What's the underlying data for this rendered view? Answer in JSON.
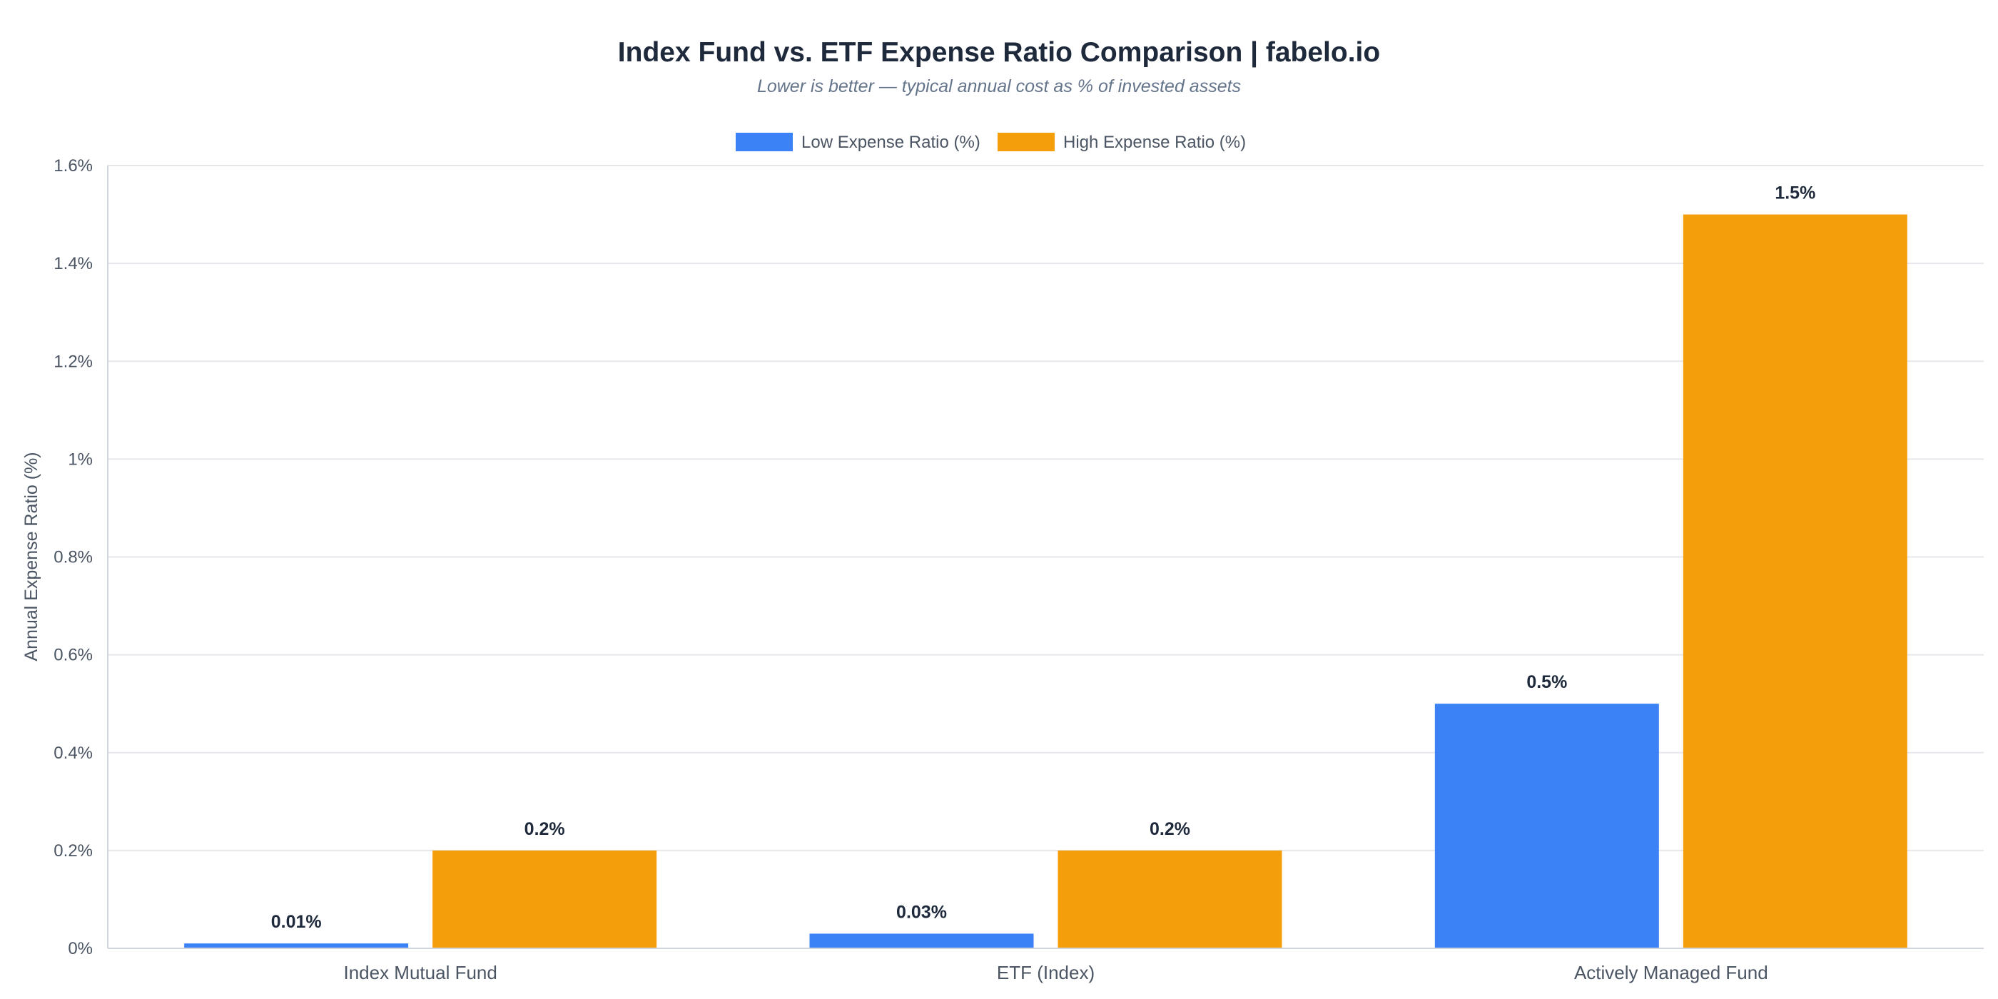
{
  "chart_data": {
    "type": "bar",
    "title": "Index Fund vs. ETF Expense Ratio Comparison  |  fabelo.io",
    "subtitle": "Lower is better — typical annual cost as % of invested assets",
    "ylabel": "Annual Expense Ratio (%)",
    "xlabel": "",
    "categories": [
      "Index Mutual Fund",
      "ETF (Index)",
      "Actively Managed Fund"
    ],
    "series": [
      {
        "name": "Low Expense Ratio (%)",
        "color": "#3b82f6",
        "values": [
          0.01,
          0.03,
          0.5
        ],
        "labels": [
          "0.01%",
          "0.03%",
          "0.5%"
        ]
      },
      {
        "name": "High Expense Ratio (%)",
        "color": "#f59e0b",
        "values": [
          0.2,
          0.2,
          1.5
        ],
        "labels": [
          "0.2%",
          "0.2%",
          "1.5%"
        ]
      }
    ],
    "ylim": [
      0,
      1.6
    ],
    "yticks": [
      0,
      0.2,
      0.4,
      0.6,
      0.8,
      1,
      1.2,
      1.4,
      1.6
    ],
    "ytick_labels": [
      "0%",
      "0.2%",
      "0.4%",
      "0.6%",
      "0.8%",
      "1%",
      "1.2%",
      "1.4%",
      "1.6%"
    ],
    "grid": true,
    "legend": "top-center"
  }
}
